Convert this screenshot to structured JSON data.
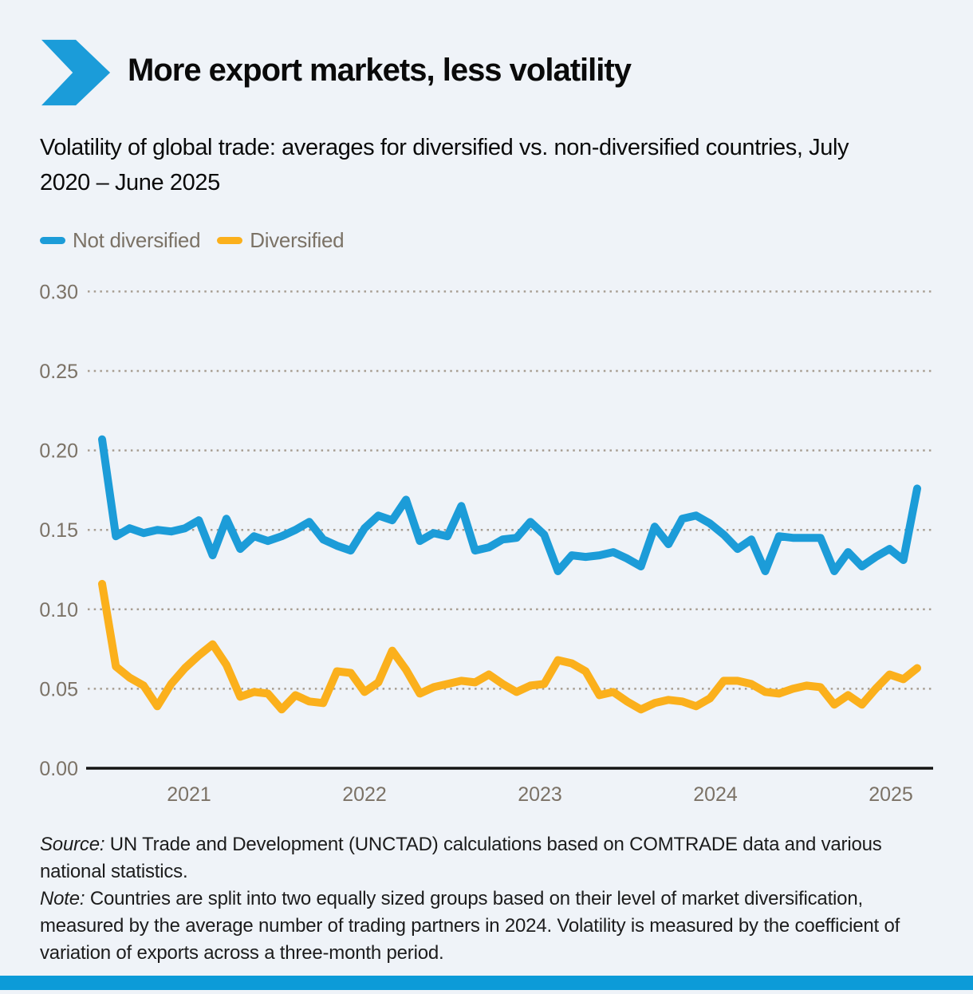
{
  "header": {
    "title": "More export markets, less volatility"
  },
  "subtitle": "Volatility of global trade: averages for diversified vs. non-diversified countries, July 2020 – June 2025",
  "legend": [
    {
      "label": "Not diversified",
      "color": "#1c9cd8"
    },
    {
      "label": "Diversified",
      "color": "#fbb01c"
    }
  ],
  "colors": {
    "background": "#eff3f8",
    "brand_blue": "#1b9cd9",
    "bottom_bar": "#0c9bd8",
    "not_diversified_line": "#1c9cd8",
    "diversified_line": "#fbb01c",
    "axis_text": "#7b7266",
    "gridline_dots": "#a89e92",
    "axis_line": "#151515"
  },
  "icons": {
    "chevron": "right-pointing-chevron-logo"
  },
  "footer": {
    "source_label": "Source:",
    "source_text": " UN Trade and Development (UNCTAD) calculations based on COMTRADE data and various national statistics.",
    "note_label": "Note:",
    "note_text": " Countries are split into two equally sized groups based on their level of market diversification, measured by the average number of trading partners in 2024. Volatility is measured by the coefficient of variation of exports across a three-month period."
  },
  "chart_data": {
    "type": "line",
    "title": "Volatility of global trade: averages for diversified vs. non-diversified countries, July 2020 – June 2025",
    "xlabel": "",
    "ylabel": "",
    "ylim": [
      0,
      0.3
    ],
    "grid": "dotted horizontal gridlines",
    "legend_position": "top-left",
    "y_ticks": [
      {
        "label": "0.30",
        "value": 0.3
      },
      {
        "label": "0.25",
        "value": 0.25
      },
      {
        "label": "0.20",
        "value": 0.2
      },
      {
        "label": "0.15",
        "value": 0.15
      },
      {
        "label": "0.10",
        "value": 0.1
      },
      {
        "label": "0.05",
        "value": 0.05
      },
      {
        "label": "0.00",
        "value": 0.0
      }
    ],
    "x_tick_labels": [
      "2021",
      "2022",
      "2023",
      "2024",
      "2025"
    ],
    "x": [
      "Jul 2020",
      "Aug 2020",
      "Sep 2020",
      "Oct 2020",
      "Nov 2020",
      "Dec 2020",
      "Jan 2021",
      "Feb 2021",
      "Mar 2021",
      "Apr 2021",
      "May 2021",
      "Jun 2021",
      "Jul 2021",
      "Aug 2021",
      "Sep 2021",
      "Oct 2021",
      "Nov 2021",
      "Dec 2021",
      "Jan 2022",
      "Feb 2022",
      "Mar 2022",
      "Apr 2022",
      "May 2022",
      "Jun 2022",
      "Jul 2022",
      "Aug 2022",
      "Sep 2022",
      "Oct 2022",
      "Nov 2022",
      "Dec 2022",
      "Jan 2023",
      "Feb 2023",
      "Mar 2023",
      "Apr 2023",
      "May 2023",
      "Jun 2023",
      "Jul 2023",
      "Aug 2023",
      "Sep 2023",
      "Oct 2023",
      "Nov 2023",
      "Dec 2023",
      "Jan 2024",
      "Feb 2024",
      "Mar 2024",
      "Apr 2024",
      "May 2024",
      "Jun 2024",
      "Jul 2024",
      "Aug 2024",
      "Sep 2024",
      "Oct 2024",
      "Nov 2024",
      "Dec 2024",
      "Jan 2025",
      "Feb 2025",
      "Mar 2025",
      "Apr 2025",
      "May 2025",
      "Jun 2025"
    ],
    "series": [
      {
        "name": "Not diversified",
        "color": "#1c9cd8",
        "values": [
          0.207,
          0.146,
          0.151,
          0.148,
          0.15,
          0.149,
          0.151,
          0.156,
          0.134,
          0.157,
          0.138,
          0.146,
          0.143,
          0.146,
          0.15,
          0.155,
          0.144,
          0.14,
          0.137,
          0.151,
          0.159,
          0.156,
          0.169,
          0.143,
          0.148,
          0.146,
          0.165,
          0.137,
          0.139,
          0.144,
          0.145,
          0.155,
          0.147,
          0.124,
          0.134,
          0.133,
          0.134,
          0.136,
          0.132,
          0.127,
          0.152,
          0.141,
          0.157,
          0.159,
          0.154,
          0.147,
          0.138,
          0.144,
          0.124,
          0.146,
          0.145,
          0.145,
          0.145,
          0.124,
          0.136,
          0.127,
          0.133,
          0.138,
          0.131,
          0.176
        ]
      },
      {
        "name": "Diversified",
        "color": "#fbb01c",
        "values": [
          0.116,
          0.064,
          0.057,
          0.052,
          0.039,
          0.053,
          0.063,
          0.071,
          0.078,
          0.065,
          0.045,
          0.048,
          0.047,
          0.037,
          0.046,
          0.042,
          0.041,
          0.061,
          0.06,
          0.048,
          0.054,
          0.074,
          0.062,
          0.047,
          0.051,
          0.053,
          0.055,
          0.054,
          0.059,
          0.053,
          0.048,
          0.052,
          0.053,
          0.068,
          0.066,
          0.061,
          0.046,
          0.048,
          0.042,
          0.037,
          0.041,
          0.043,
          0.042,
          0.039,
          0.044,
          0.055,
          0.055,
          0.053,
          0.048,
          0.047,
          0.05,
          0.052,
          0.051,
          0.04,
          0.046,
          0.04,
          0.05,
          0.059,
          0.056,
          0.063
        ]
      }
    ]
  }
}
